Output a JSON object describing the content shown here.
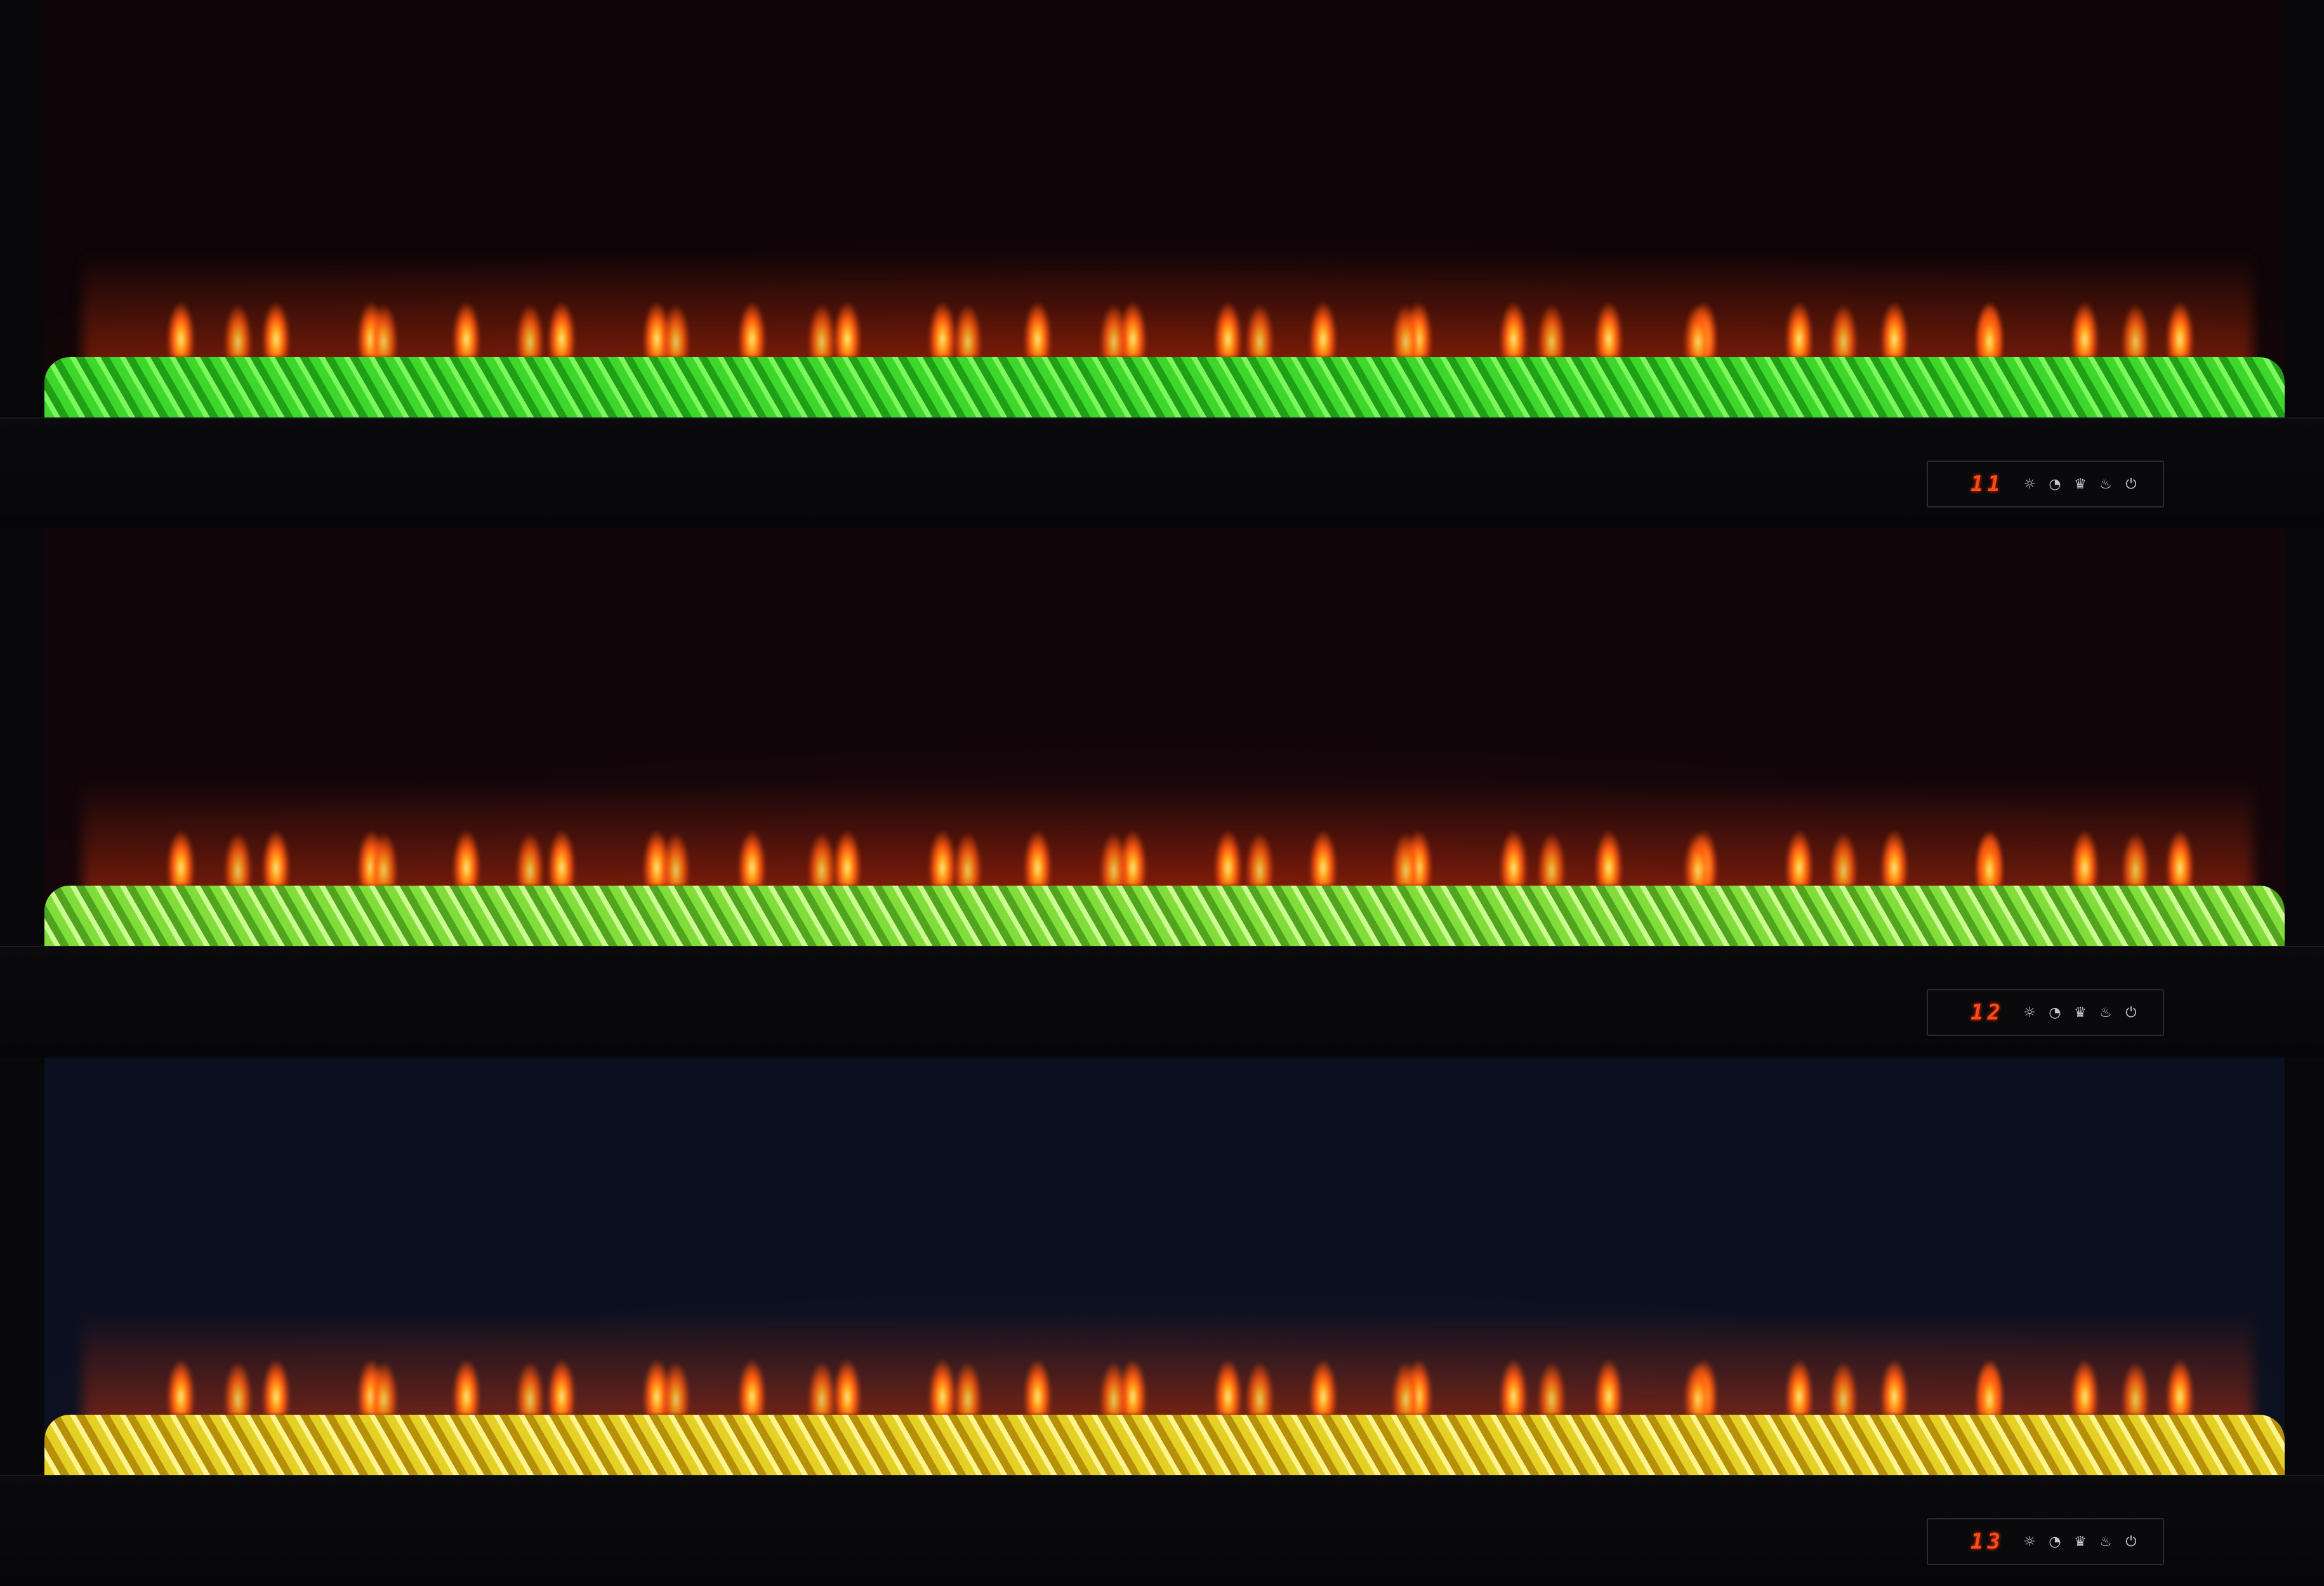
{
  "panels": [
    {
      "readout": "11",
      "bed_color": "#5ad040",
      "icons": [
        "brightness-icon",
        "timer-icon",
        "flame-height-icon",
        "flame-icon",
        "power-icon"
      ]
    },
    {
      "readout": "12",
      "bed_color": "#9ad858",
      "icons": [
        "brightness-icon",
        "timer-icon",
        "flame-height-icon",
        "flame-icon",
        "power-icon"
      ]
    },
    {
      "readout": "13",
      "bed_color": "#e0d050",
      "icons": [
        "brightness-icon",
        "timer-icon",
        "flame-height-icon",
        "flame-icon",
        "power-icon"
      ]
    }
  ],
  "glyphs": {
    "sun": "☼",
    "timer": "◔",
    "crown": "♛",
    "flame": "♨",
    "power": "⏻"
  }
}
